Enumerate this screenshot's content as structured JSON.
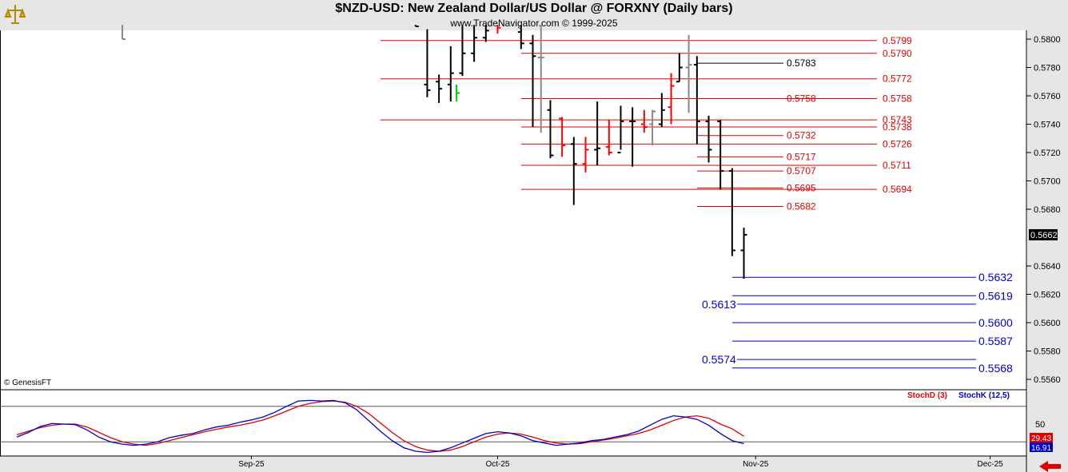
{
  "header": {
    "title": "$NZD-USD:  New Zealand Dollar/US Dollar @ FORXNY  (Daily bars)",
    "subtitle": "www.TradeNavigator.com © 1999-2025"
  },
  "copyright": "© GenesisFT",
  "colors": {
    "background": "#ffffff",
    "header_bg": "#e6e6e6",
    "axis_bg": "#e6e6e6",
    "resistance": "#e00000",
    "support": "#0000cc",
    "bar": "#000000",
    "bar_grey": "#888888",
    "bar_red": "#ff0000",
    "bar_green": "#00cc00",
    "stoch_d": "#e00000",
    "stoch_k": "#0000cc",
    "last_price_bg": "#000000",
    "arrow": "#e00000"
  },
  "chart_data": [
    {
      "type": "ohlc",
      "title": "$NZD-USD:  New Zealand Dollar/US Dollar @ FORXNY  (Daily bars)",
      "ylim": [
        0.5554,
        0.581
      ],
      "y_ticks": [
        "0.5800",
        "0.5780",
        "0.5760",
        "0.5740",
        "0.5720",
        "0.5700",
        "0.5680",
        "0.5640",
        "0.5620",
        "0.5600",
        "0.5580",
        "0.5560"
      ],
      "x_labels": [
        {
          "label": "Sep-25",
          "day": 20
        },
        {
          "label": "Oct-25",
          "day": 41
        },
        {
          "label": "Nov-25",
          "day": 63
        },
        {
          "label": "Dec-25",
          "day": 83
        }
      ],
      "last_price": {
        "value": 0.5662,
        "label": "0.5662"
      },
      "bars": [
        {
          "d": 9,
          "h": 0.581,
          "l": 0.58,
          "c": 0.58,
          "k": "g"
        },
        {
          "d": 34,
          "h": 0.581,
          "l": 0.5809,
          "c": 0.5809,
          "k": "b"
        },
        {
          "d": 35,
          "h": 0.5807,
          "l": 0.5759,
          "o": 0.5768,
          "c": 0.5764,
          "k": "b"
        },
        {
          "d": 36,
          "h": 0.5775,
          "l": 0.5755,
          "o": 0.577,
          "c": 0.5765,
          "k": "b"
        },
        {
          "d": 37,
          "h": 0.5795,
          "l": 0.5756,
          "o": 0.5768,
          "c": 0.5776,
          "k": "b"
        },
        {
          "d": 37.5,
          "h": 0.5768,
          "l": 0.5756,
          "c": 0.5762,
          "k": "gr"
        },
        {
          "d": 38,
          "h": 0.581,
          "l": 0.5774,
          "o": 0.5776,
          "c": 0.579,
          "k": "b"
        },
        {
          "d": 39,
          "h": 0.581,
          "l": 0.5784,
          "o": 0.579,
          "c": 0.5801,
          "k": "b"
        },
        {
          "d": 40,
          "h": 0.581,
          "l": 0.5798,
          "o": 0.5801,
          "c": 0.5806,
          "k": "b"
        },
        {
          "d": 41,
          "h": 0.581,
          "l": 0.5804,
          "c": 0.5808,
          "k": "r"
        },
        {
          "d": 43,
          "h": 0.581,
          "l": 0.5793,
          "o": 0.5805,
          "c": 0.5797,
          "k": "b"
        },
        {
          "d": 44,
          "h": 0.5803,
          "l": 0.5738,
          "o": 0.5797,
          "c": 0.5788,
          "k": "b"
        },
        {
          "d": 44.7,
          "h": 0.581,
          "l": 0.5734,
          "o": 0.5787,
          "c": 0.5787,
          "k": "g"
        },
        {
          "d": 45.5,
          "h": 0.5757,
          "l": 0.5716,
          "o": 0.575,
          "c": 0.5718,
          "k": "b"
        },
        {
          "d": 46.5,
          "h": 0.5745,
          "l": 0.5717,
          "o": 0.5744,
          "c": 0.5725,
          "k": "r"
        },
        {
          "d": 47.5,
          "h": 0.5731,
          "l": 0.5683,
          "o": 0.5726,
          "c": 0.5712,
          "k": "b"
        },
        {
          "d": 48.5,
          "h": 0.5731,
          "l": 0.5706,
          "o": 0.5712,
          "c": 0.5722,
          "k": "r"
        },
        {
          "d": 49.5,
          "h": 0.5756,
          "l": 0.5711,
          "o": 0.5722,
          "c": 0.5723,
          "k": "b"
        },
        {
          "d": 50.5,
          "h": 0.5743,
          "l": 0.5718,
          "o": 0.5724,
          "c": 0.572,
          "k": "r"
        },
        {
          "d": 51.5,
          "h": 0.5753,
          "l": 0.5722,
          "o": 0.572,
          "c": 0.5742,
          "k": "b"
        },
        {
          "d": 52.5,
          "h": 0.5752,
          "l": 0.571,
          "o": 0.5742,
          "c": 0.5742,
          "k": "b"
        },
        {
          "d": 53.5,
          "h": 0.575,
          "l": 0.5734,
          "o": 0.574,
          "c": 0.5738,
          "k": "r"
        },
        {
          "d": 54.2,
          "h": 0.575,
          "l": 0.5725,
          "o": 0.574,
          "c": 0.5749,
          "k": "g"
        },
        {
          "d": 55,
          "h": 0.5762,
          "l": 0.5738,
          "o": 0.574,
          "c": 0.575,
          "k": "b"
        },
        {
          "d": 55.8,
          "h": 0.5776,
          "l": 0.574,
          "o": 0.5752,
          "c": 0.5767,
          "k": "r"
        },
        {
          "d": 56.5,
          "h": 0.579,
          "l": 0.577,
          "o": 0.577,
          "c": 0.578,
          "k": "b"
        },
        {
          "d": 57.3,
          "h": 0.5803,
          "l": 0.5748,
          "o": 0.578,
          "c": 0.5782,
          "k": "g"
        },
        {
          "d": 58,
          "h": 0.5788,
          "l": 0.5726,
          "o": 0.5782,
          "c": 0.5742,
          "k": "b"
        },
        {
          "d": 59,
          "h": 0.5746,
          "l": 0.5713,
          "o": 0.5742,
          "c": 0.5722,
          "k": "b"
        },
        {
          "d": 60,
          "h": 0.5743,
          "l": 0.5694,
          "o": 0.5742,
          "c": 0.5707,
          "k": "b"
        },
        {
          "d": 61,
          "h": 0.5709,
          "l": 0.5647,
          "o": 0.5707,
          "c": 0.5651,
          "k": "b"
        },
        {
          "d": 62,
          "h": 0.5667,
          "l": 0.5631,
          "o": 0.5651,
          "c": 0.5662,
          "k": "b"
        }
      ],
      "resistance_levels": [
        {
          "value": 0.5799,
          "label": "0.5799",
          "from_day": 31,
          "label_pos": "right"
        },
        {
          "value": 0.579,
          "label": "0.5790",
          "from_day": 43,
          "label_pos": "right"
        },
        {
          "value": 0.5783,
          "label": "0.5783",
          "from_day": 58,
          "label_pos": "mid",
          "color": "black"
        },
        {
          "value": 0.5772,
          "label": "0.5772",
          "from_day": 31,
          "label_pos": "right"
        },
        {
          "value": 0.5758,
          "label": "0.5758",
          "from_day": 43,
          "label_pos": "right"
        },
        {
          "value": 0.5758,
          "label": "0.5758",
          "from_day": 58,
          "label_pos": "mid"
        },
        {
          "value": 0.5743,
          "label": "0.5743",
          "from_day": 31,
          "label_pos": "right"
        },
        {
          "value": 0.5738,
          "label": "0.5738",
          "from_day": 43,
          "label_pos": "right"
        },
        {
          "value": 0.5732,
          "label": "0.5732",
          "from_day": 58,
          "label_pos": "mid"
        },
        {
          "value": 0.5726,
          "label": "0.5726",
          "from_day": 43,
          "label_pos": "right"
        },
        {
          "value": 0.5717,
          "label": "0.5717",
          "from_day": 58,
          "label_pos": "mid"
        },
        {
          "value": 0.5711,
          "label": "0.5711",
          "from_day": 43,
          "label_pos": "right"
        },
        {
          "value": 0.5707,
          "label": "0.5707",
          "from_day": 58,
          "label_pos": "mid"
        },
        {
          "value": 0.5695,
          "label": "0.5695",
          "from_day": 58,
          "label_pos": "mid"
        },
        {
          "value": 0.5694,
          "label": "0.5694",
          "from_day": 43,
          "label_pos": "right"
        },
        {
          "value": 0.5682,
          "label": "0.5682",
          "from_day": 58,
          "label_pos": "mid"
        }
      ],
      "support_levels": [
        {
          "value": 0.5632,
          "label": "0.5632",
          "from_day": 61,
          "label_pos": "right"
        },
        {
          "value": 0.5619,
          "label": "0.5619",
          "from_day": 61,
          "label_pos": "right"
        },
        {
          "value": 0.5613,
          "label": "0.5613",
          "from_day": 61,
          "label_pos": "left"
        },
        {
          "value": 0.56,
          "label": "0.5600",
          "from_day": 61,
          "label_pos": "right"
        },
        {
          "value": 0.5587,
          "label": "0.5587",
          "from_day": 61,
          "label_pos": "right"
        },
        {
          "value": 0.5574,
          "label": "0.5574",
          "from_day": 61,
          "label_pos": "left"
        },
        {
          "value": 0.5568,
          "label": "0.5568",
          "from_day": 61,
          "label_pos": "right"
        }
      ]
    },
    {
      "type": "line",
      "legend": [
        "StochD (3)",
        "StochK (12,5)"
      ],
      "ylim": [
        0,
        100
      ],
      "reference_levels": [
        20,
        80
      ],
      "y_ticks": [
        "50"
      ],
      "last_values": [
        {
          "label": "29.43",
          "value": 29.43
        },
        {
          "label": "16.91",
          "value": 16.91
        }
      ],
      "x": [
        0,
        1,
        2,
        3,
        4,
        5,
        6,
        7,
        8,
        9,
        10,
        11,
        12,
        13,
        14,
        15,
        16,
        17,
        18,
        19,
        20,
        21,
        22,
        23,
        24,
        25,
        26,
        27,
        28,
        29,
        30,
        31,
        32,
        33,
        34,
        35,
        36,
        37,
        38,
        39,
        40,
        41,
        42,
        43,
        44,
        45,
        46,
        47,
        48,
        49,
        50,
        51,
        52,
        53,
        54,
        55,
        56,
        57,
        58,
        59,
        60,
        61,
        62
      ],
      "series": [
        {
          "name": "StochD (3)",
          "values": [
            32,
            38,
            44,
            48,
            50,
            50,
            45,
            36,
            27,
            20,
            16,
            14,
            17,
            22,
            27,
            32,
            37,
            41,
            45,
            48,
            52,
            57,
            64,
            72,
            80,
            85,
            88,
            89,
            87,
            80,
            68,
            52,
            36,
            22,
            12,
            6,
            4,
            6,
            12,
            20,
            28,
            33,
            35,
            33,
            28,
            22,
            18,
            16,
            17,
            20,
            23,
            26,
            30,
            34,
            40,
            48,
            56,
            62,
            64,
            60,
            50,
            42,
            29.43
          ]
        },
        {
          "name": "StochK (12,5)",
          "values": [
            28,
            36,
            46,
            51,
            50,
            49,
            40,
            28,
            20,
            16,
            14,
            16,
            20,
            27,
            31,
            34,
            40,
            45,
            48,
            53,
            57,
            62,
            70,
            80,
            89,
            90,
            89,
            90,
            86,
            74,
            56,
            38,
            22,
            10,
            4,
            2,
            4,
            10,
            18,
            26,
            34,
            37,
            35,
            30,
            22,
            18,
            14,
            16,
            18,
            22,
            24,
            28,
            32,
            38,
            48,
            58,
            64,
            62,
            58,
            48,
            34,
            22,
            16.91
          ]
        }
      ]
    }
  ]
}
